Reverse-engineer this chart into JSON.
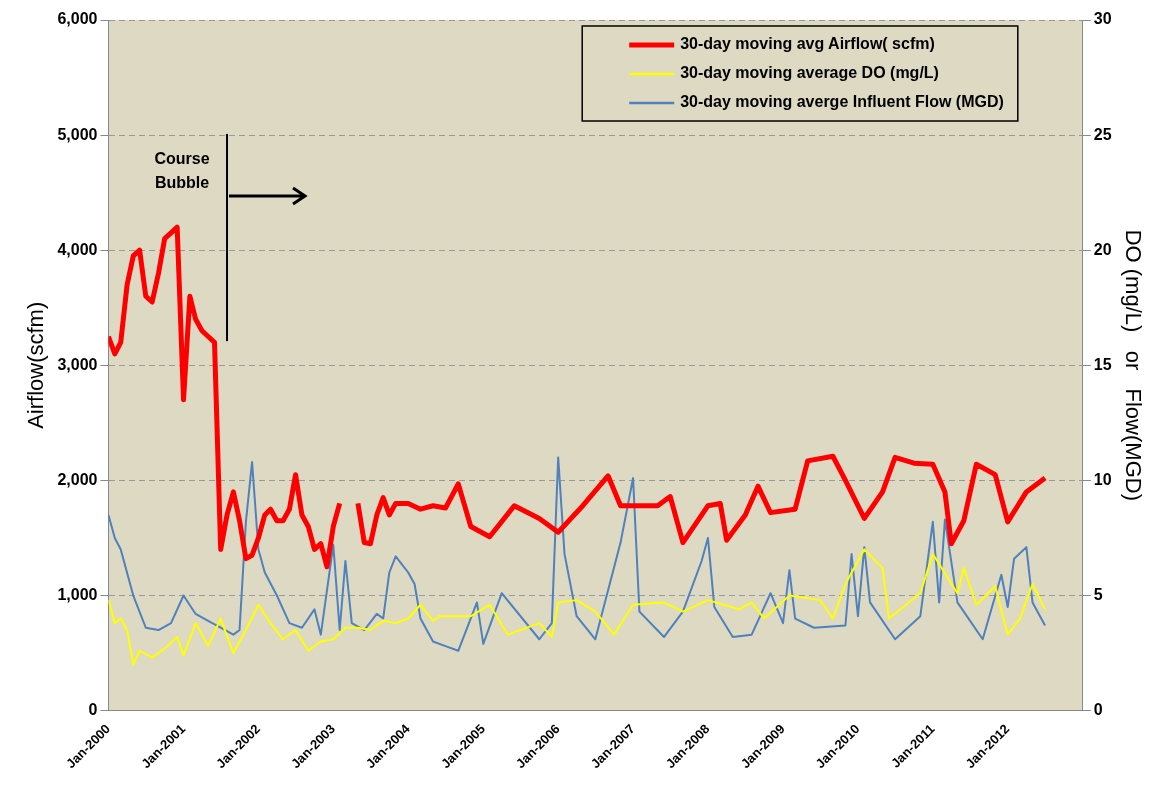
{
  "chart_data": {
    "type": "line",
    "ylabel": "Airflow(scfm)",
    "y2label": "DO (mg/L)   or   Flow(MGD)",
    "xlim": [
      "2000-01",
      "2013-01"
    ],
    "xticks": [
      {
        "value": "2000-01",
        "label": "Jan-2000"
      },
      {
        "value": "2001-01",
        "label": "Jan-2001"
      },
      {
        "value": "2002-01",
        "label": "Jan-2002"
      },
      {
        "value": "2003-01",
        "label": "Jan-2003"
      },
      {
        "value": "2004-01",
        "label": "Jan-2004"
      },
      {
        "value": "2005-01",
        "label": "Jan-2005"
      },
      {
        "value": "2006-01",
        "label": "Jan-2006"
      },
      {
        "value": "2007-01",
        "label": "Jan-2007"
      },
      {
        "value": "2008-01",
        "label": "Jan-2008"
      },
      {
        "value": "2009-01",
        "label": "Jan-2009"
      },
      {
        "value": "2010-01",
        "label": "Jan-2010"
      },
      {
        "value": "2011-01",
        "label": "Jan-2011"
      },
      {
        "value": "2012-01",
        "label": "Jan-2012"
      },
      {
        "value": "2013-01",
        "label": null
      }
    ],
    "ylim": [
      0,
      6000
    ],
    "yticks": [
      0,
      {
        "value": 1000,
        "label": "1,000"
      },
      {
        "value": 2000,
        "label": "2,000"
      },
      {
        "value": 3000,
        "label": "3,000"
      },
      {
        "value": 4000,
        "label": "4,000"
      },
      {
        "value": 5000,
        "label": "5,000"
      },
      {
        "value": 6000,
        "label": "6,000"
      }
    ],
    "y2lim": [
      0,
      30
    ],
    "y2ticks": [
      0,
      5,
      10,
      15,
      20,
      25,
      30
    ],
    "grid": "y",
    "legend": "top right",
    "marker": "none",
    "line_style": "solid",
    "ref_lines": [
      {
        "axis": "x",
        "value": "2001-08",
        "label": "Course Bubble",
        "color": "#000000"
      }
    ],
    "series": [
      {
        "name": "30-day moving avg Airflow( scfm)",
        "color": "#ff0000",
        "x": [
          "2000-01",
          "2000-02",
          "2000-03",
          "2000-04",
          "2000-05",
          "2000-06",
          "2000-07",
          "2000-08",
          "2000-09",
          "2000-10",
          "2000-11",
          "2000-12",
          "2001-01",
          "2001-02",
          "2001-03",
          "2001-04",
          "2001-05",
          "2001-06",
          "2001-07",
          "2001-08",
          "2001-09",
          "2001-10",
          "2001-11",
          "2001-12",
          "2002-01",
          "2002-02",
          "2002-03",
          "2002-04",
          "2002-05",
          "2002-06",
          "2002-07",
          "2002-08",
          "2002-09",
          "2002-10",
          "2002-11",
          "2002-12",
          "2003-01",
          "2003-02",
          "2003-04",
          "2003-05",
          "2003-06",
          "2003-07",
          "2003-08",
          "2003-09",
          "2003-10",
          "2003-11",
          "2004-01",
          "2004-03",
          "2004-05",
          "2004-07",
          "2004-09",
          "2004-11",
          "2005-02",
          "2005-06",
          "2005-10",
          "2006-01",
          "2006-05",
          "2006-09",
          "2006-11",
          "2007-05",
          "2007-07",
          "2007-09",
          "2008-01",
          "2008-03",
          "2008-04",
          "2008-07",
          "2008-09",
          "2008-11",
          "2009-03",
          "2009-05",
          "2009-09",
          "2009-11",
          "2010-02",
          "2010-05",
          "2010-07",
          "2010-10",
          "2011-01",
          "2011-03",
          "2011-04",
          "2011-06",
          "2011-08",
          "2011-11",
          "2012-01",
          "2012-04",
          "2012-07"
        ],
        "values": [
          3250,
          3100,
          3200,
          3700,
          3950,
          4000,
          3600,
          3550,
          3800,
          4100,
          4150,
          4200,
          2700,
          3600,
          3400,
          3300,
          3250,
          3200,
          1400,
          1700,
          1900,
          1650,
          1320,
          1350,
          1500,
          1700,
          1750,
          1650,
          1650,
          1750,
          2050,
          1700,
          1600,
          1400,
          1450,
          1250,
          1600,
          1800,
          null,
          1800,
          1460,
          1450,
          1700,
          1850,
          1700,
          1800,
          1800,
          1750,
          1780,
          1760,
          1970,
          1600,
          1510,
          1780,
          1670,
          1550,
          1780,
          2040,
          1780,
          1780,
          1860,
          1460,
          1780,
          1800,
          1480,
          1700,
          1950,
          1720,
          1750,
          2170,
          2210,
          2000,
          1670,
          1900,
          2200,
          2150,
          2140,
          1900,
          1450,
          1650,
          2140,
          2050,
          1640,
          1900,
          2020
        ]
      },
      {
        "name": "30-day moving average DO (mg/L)",
        "color": "#ffff00",
        "axis": "y2",
        "x": [
          "2000-01",
          "2000-02",
          "2000-03",
          "2000-04",
          "2000-05",
          "2000-06",
          "2000-08",
          "2000-10",
          "2000-12",
          "2001-01",
          "2001-03",
          "2001-05",
          "2001-07",
          "2001-09",
          "2001-11",
          "2002-01",
          "2002-03",
          "2002-05",
          "2002-07",
          "2002-09",
          "2002-11",
          "2003-01",
          "2003-03",
          "2003-05",
          "2003-07",
          "2003-09",
          "2003-11",
          "2004-01",
          "2004-03",
          "2004-05",
          "2004-06",
          "2004-11",
          "2005-02",
          "2005-05",
          "2005-10",
          "2005-12",
          "2006-01",
          "2006-04",
          "2006-07",
          "2006-10",
          "2007-01",
          "2007-06",
          "2007-09",
          "2008-01",
          "2008-06",
          "2008-08",
          "2008-10",
          "2009-02",
          "2009-07",
          "2009-09",
          "2009-11",
          "2010-02",
          "2010-05",
          "2010-06",
          "2010-11",
          "2011-01",
          "2011-05",
          "2011-06",
          "2011-08",
          "2011-11",
          "2012-01",
          "2012-03",
          "2012-05",
          "2012-07"
        ],
        "values": [
          4.8,
          3.8,
          4.0,
          3.5,
          2.0,
          2.6,
          2.3,
          2.7,
          3.2,
          2.4,
          3.8,
          2.8,
          4.0,
          2.5,
          3.5,
          4.6,
          3.8,
          3.1,
          3.5,
          2.6,
          3.0,
          3.1,
          3.6,
          3.6,
          3.5,
          3.9,
          3.8,
          4.0,
          4.6,
          3.9,
          4.1,
          4.1,
          4.6,
          3.3,
          3.8,
          3.2,
          4.7,
          4.8,
          4.3,
          3.3,
          4.6,
          4.7,
          4.3,
          4.8,
          4.4,
          4.7,
          4.0,
          5.0,
          4.8,
          4.0,
          5.5,
          7.0,
          6.2,
          4.0,
          5.1,
          6.8,
          5.1,
          6.2,
          4.6,
          5.4,
          3.3,
          4.0,
          5.5,
          4.4
        ]
      },
      {
        "name": "30-day moving averge Influent Flow (MGD)",
        "color": "#4f81bd",
        "axis": "y2",
        "x": [
          "2000-01",
          "2000-02",
          "2000-03",
          "2000-05",
          "2000-07",
          "2000-09",
          "2000-11",
          "2001-01",
          "2001-03",
          "2001-05",
          "2001-07",
          "2001-09",
          "2001-10",
          "2001-11",
          "2001-12",
          "2002-01",
          "2002-02",
          "2002-04",
          "2002-06",
          "2002-08",
          "2002-10",
          "2002-11",
          "2003-01",
          "2003-02",
          "2003-03",
          "2003-04",
          "2003-06",
          "2003-08",
          "2003-09",
          "2003-10",
          "2003-11",
          "2004-01",
          "2004-02",
          "2004-03",
          "2004-05",
          "2004-07",
          "2004-09",
          "2004-12",
          "2005-01",
          "2005-04",
          "2005-10",
          "2005-12",
          "2006-01",
          "2006-02",
          "2006-04",
          "2006-07",
          "2006-11",
          "2007-01",
          "2007-02",
          "2007-06",
          "2007-09",
          "2007-12",
          "2008-01",
          "2008-02",
          "2008-05",
          "2008-08",
          "2008-11",
          "2009-01",
          "2009-02",
          "2009-03",
          "2009-06",
          "2009-11",
          "2009-12",
          "2010-01",
          "2010-02",
          "2010-03",
          "2010-07",
          "2010-11",
          "2011-01",
          "2011-02",
          "2011-03",
          "2011-05",
          "2011-09",
          "2011-12",
          "2012-01",
          "2012-02",
          "2012-04",
          "2012-05",
          "2012-07"
        ],
        "values": [
          8.5,
          7.5,
          7.0,
          5.0,
          3.6,
          3.5,
          3.8,
          5.0,
          4.2,
          3.9,
          3.6,
          3.3,
          3.5,
          8.2,
          10.8,
          7.0,
          6.0,
          5.0,
          3.8,
          3.6,
          4.4,
          3.3,
          7.2,
          3.5,
          6.5,
          3.8,
          3.5,
          4.2,
          4.0,
          6.0,
          6.7,
          6.0,
          5.5,
          4.0,
          3.0,
          2.8,
          2.6,
          4.7,
          2.9,
          5.1,
          3.1,
          3.8,
          11.0,
          6.8,
          4.1,
          3.1,
          7.3,
          10.1,
          4.3,
          3.2,
          4.3,
          6.5,
          7.5,
          4.5,
          3.2,
          3.3,
          5.1,
          3.8,
          6.1,
          4.0,
          3.6,
          3.7,
          6.8,
          4.1,
          7.1,
          4.7,
          3.1,
          4.1,
          8.2,
          4.7,
          8.3,
          4.7,
          3.1,
          5.9,
          4.5,
          6.6,
          7.1,
          4.7,
          3.7
        ]
      }
    ]
  }
}
